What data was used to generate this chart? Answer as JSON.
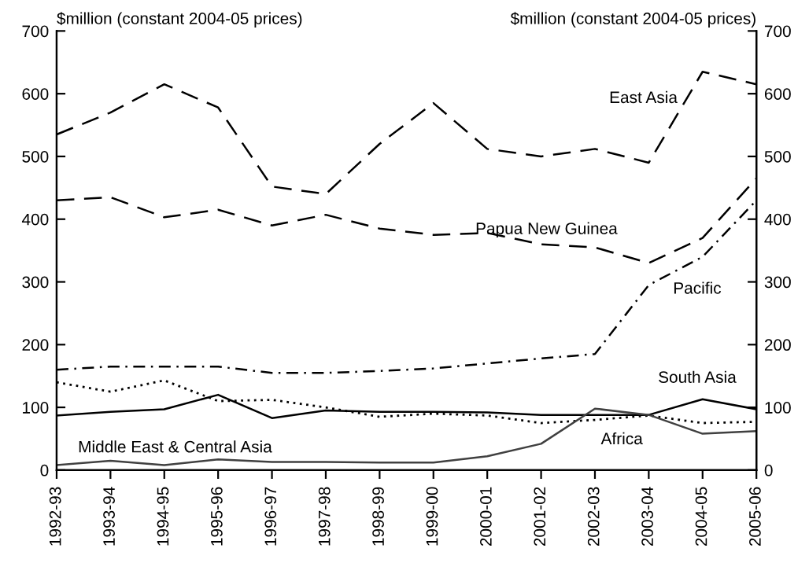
{
  "chart_data": {
    "type": "line",
    "ylabel": "$million (constant 2004-05 prices)",
    "y2label": "$million (constant 2004-05 prices)",
    "categories": [
      "1992-93",
      "1993-94",
      "1994-95",
      "1995-96",
      "1996-97",
      "1997-98",
      "1998-99",
      "1999-00",
      "2000-01",
      "2001-02",
      "2002-03",
      "2003-04",
      "2004-05",
      "2005-06"
    ],
    "ylim": [
      0,
      700
    ],
    "yticks": [
      0,
      100,
      200,
      300,
      400,
      500,
      600,
      700
    ],
    "y2lim": [
      0,
      700
    ],
    "y2ticks": [
      0,
      100,
      200,
      300,
      400,
      500,
      600,
      700
    ],
    "grid": false,
    "legend": false,
    "marker": "none",
    "series": [
      {
        "name": "East Asia",
        "color": "#000000",
        "line_style": "dashed",
        "values": [
          535,
          570,
          615,
          578,
          452,
          440,
          520,
          585,
          512,
          500,
          512,
          490,
          635,
          615
        ]
      },
      {
        "name": "Papua New Guinea",
        "color": "#000000",
        "line_style": "dashed",
        "values": [
          430,
          435,
          403,
          415,
          390,
          407,
          385,
          375,
          378,
          360,
          355,
          330,
          370,
          465
        ]
      },
      {
        "name": "Pacific",
        "color": "#000000",
        "line_style": "dashdot",
        "values": [
          160,
          165,
          165,
          165,
          155,
          155,
          158,
          162,
          170,
          178,
          185,
          295,
          340,
          430
        ]
      },
      {
        "name": "South Asia",
        "color": "#000000",
        "line_style": "solid",
        "values": [
          87,
          93,
          97,
          120,
          83,
          95,
          93,
          93,
          92,
          88,
          88,
          88,
          113,
          97
        ]
      },
      {
        "name": "Africa",
        "color": "#000000",
        "line_style": "dotted",
        "values": [
          140,
          125,
          143,
          110,
          112,
          100,
          85,
          90,
          87,
          75,
          80,
          87,
          75,
          77
        ]
      },
      {
        "name": "Middle East & Central Asia",
        "color": "#404040",
        "line_style": "solid",
        "values": [
          8,
          15,
          8,
          17,
          13,
          13,
          12,
          12,
          22,
          42,
          98,
          88,
          58,
          62
        ]
      }
    ]
  }
}
